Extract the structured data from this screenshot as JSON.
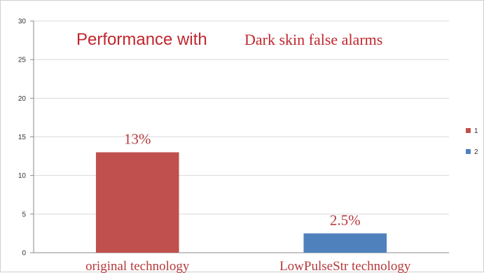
{
  "chart_data": {
    "type": "bar",
    "title_part1": "Performance with",
    "title_part2": "Dark skin false alarms",
    "categories": [
      "original technology",
      "LowPulseStr technology"
    ],
    "values": [
      13,
      2.5
    ],
    "data_labels": [
      "13%",
      "2.5%"
    ],
    "colors": [
      "#c0504d",
      "#4f81bd"
    ],
    "ylim": [
      0,
      30
    ],
    "yticks": [
      0,
      5,
      10,
      15,
      20,
      25,
      30
    ],
    "grid": true,
    "legend": {
      "placement": "right",
      "entries": [
        "1",
        "2"
      ]
    }
  }
}
